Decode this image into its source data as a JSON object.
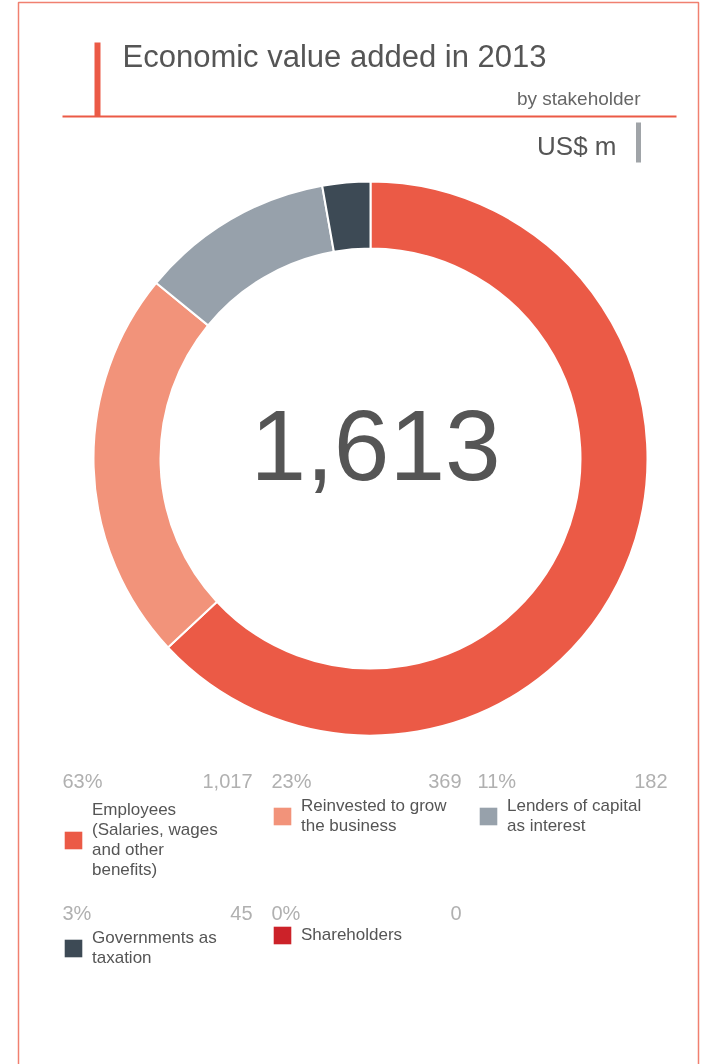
{
  "chart_data": {
    "type": "donut",
    "title": "Economic value added in 2013",
    "subtitle": "by stakeholder",
    "categories": [
      "Employees (Salaries, wages and other benefits)",
      "Reinvested to grow the business",
      "Lenders of capital as interest",
      "Governments as taxation",
      "Shareholders"
    ],
    "values": [
      1017,
      369,
      182,
      45,
      0
    ],
    "colors": [
      "#eb5a46",
      "#f2937a",
      "#97a1ab",
      "#3d4a55",
      "#cc2229"
    ],
    "value_labels": [
      "1,017",
      "369",
      "182",
      "45",
      "0"
    ],
    "annotations": [
      "1,613",
      "US$ m",
      "63%",
      "23%",
      "11%",
      "3%",
      "0%"
    ],
    "legend": "bottom"
  }
}
